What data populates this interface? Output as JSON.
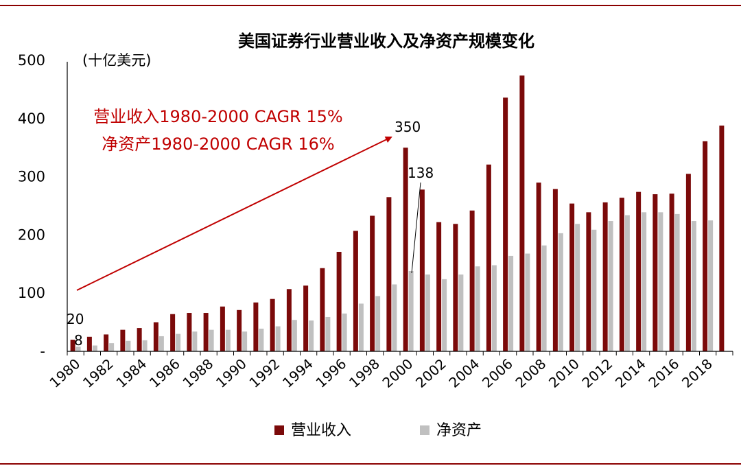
{
  "chart_data": {
    "type": "bar",
    "title": "美国证券行业营业收入及净资产规模变化",
    "unit_label": "(十亿美元)",
    "ylim": [
      0,
      500
    ],
    "y_ticks": [
      {
        "value": 0,
        "label": "-"
      },
      {
        "value": 100,
        "label": "100"
      },
      {
        "value": 200,
        "label": "200"
      },
      {
        "value": 300,
        "label": "300"
      },
      {
        "value": 400,
        "label": "400"
      },
      {
        "value": 500,
        "label": "500"
      }
    ],
    "categories": [
      1980,
      1981,
      1982,
      1983,
      1984,
      1985,
      1986,
      1987,
      1988,
      1989,
      1990,
      1991,
      1992,
      1993,
      1994,
      1995,
      1996,
      1997,
      1998,
      1999,
      2000,
      2001,
      2002,
      2003,
      2004,
      2005,
      2006,
      2007,
      2008,
      2009,
      2010,
      2011,
      2012,
      2013,
      2014,
      2015,
      2016,
      2017,
      2018,
      2019
    ],
    "x_tick_labels": [
      "1980",
      "1982",
      "1984",
      "1986",
      "1988",
      "1990",
      "1992",
      "1994",
      "1996",
      "1998",
      "2000",
      "2002",
      "2004",
      "2006",
      "2008",
      "2010",
      "2012",
      "2014",
      "2016",
      "2018"
    ],
    "series": [
      {
        "name": "营业收入",
        "color": "#7b0a0a",
        "values": [
          20,
          25,
          29,
          37,
          40,
          50,
          64,
          66,
          66,
          77,
          71,
          84,
          90,
          107,
          113,
          143,
          171,
          207,
          233,
          265,
          350,
          278,
          222,
          219,
          242,
          321,
          436,
          474,
          290,
          279,
          254,
          239,
          256,
          264,
          274,
          270,
          271,
          305,
          361,
          388
        ]
      },
      {
        "name": "净资产",
        "color": "#c0c0c0",
        "values": [
          8,
          10,
          14,
          18,
          19,
          26,
          30,
          34,
          37,
          37,
          34,
          39,
          43,
          54,
          53,
          59,
          65,
          82,
          95,
          115,
          138,
          132,
          124,
          132,
          146,
          148,
          164,
          168,
          182,
          203,
          219,
          209,
          224,
          234,
          239,
          239,
          236,
          224,
          225,
          0
        ]
      }
    ],
    "annotations": {
      "revenue_cagr": "营业收入1980-2000 CAGR 15%",
      "equity_cagr": "净资产1980-2000 CAGR 16%",
      "rev_1980": "20",
      "eq_1980": "8",
      "rev_2000": "350",
      "eq_2000": "138"
    },
    "legend": [
      "营业收入",
      "净资产"
    ],
    "legend_position": "bottom"
  }
}
